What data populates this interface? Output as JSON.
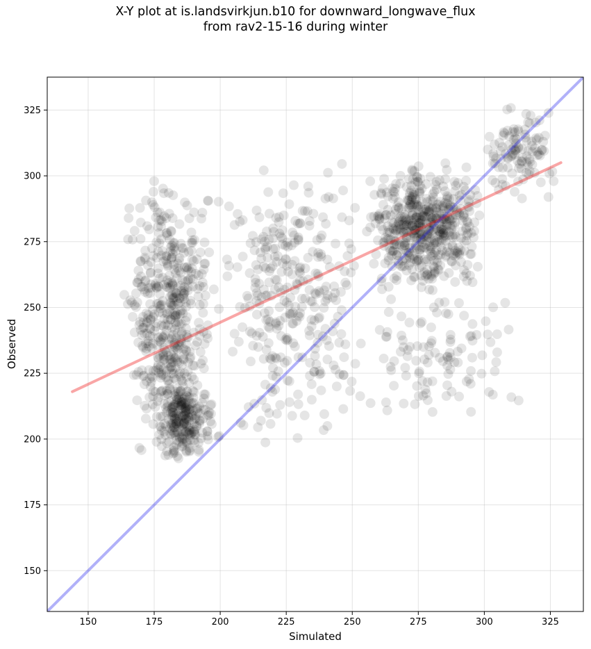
{
  "title_lines": [
    "X-Y plot at is.landsvirkjun.b10 for downward_longwave_flux",
    "from rav2-15-16 during winter"
  ],
  "chart_data": {
    "type": "scatter",
    "xlabel": "Simulated",
    "ylabel": "Observed",
    "xlim": [
      134.5,
      337.5
    ],
    "ylim": [
      134.5,
      337.5
    ],
    "xticks": [
      150,
      175,
      200,
      225,
      250,
      275,
      300,
      325
    ],
    "yticks": [
      150,
      175,
      200,
      225,
      250,
      275,
      300,
      325
    ],
    "grid": true,
    "marker_color": "#000000",
    "marker_alpha": 0.1,
    "points_generation": {
      "count": 1800,
      "note": "dense cloud; approximate distribution of simulated vs observed values",
      "clusters": [
        {
          "x": [
            163,
            200
          ],
          "y": [
            190,
            300
          ],
          "weight": 0.28
        },
        {
          "x": [
            175,
            198
          ],
          "y": [
            190,
            225
          ],
          "weight": 0.12
        },
        {
          "x": [
            200,
            255
          ],
          "y": [
            195,
            310
          ],
          "weight": 0.18
        },
        {
          "x": [
            255,
            300
          ],
          "y": [
            255,
            305
          ],
          "weight": 0.3
        },
        {
          "x": [
            255,
            315
          ],
          "y": [
            205,
            260
          ],
          "weight": 0.06
        },
        {
          "x": [
            300,
            328
          ],
          "y": [
            290,
            328
          ],
          "weight": 0.06
        }
      ]
    },
    "lines": [
      {
        "name": "regression",
        "color": "#ef2020",
        "alpha": 0.4,
        "x": [
          144,
          329
        ],
        "y": [
          218,
          305
        ]
      },
      {
        "name": "one-to-one",
        "color": "#1f1fef",
        "alpha": 0.35,
        "x": [
          134.5,
          337.5
        ],
        "y": [
          134.5,
          337.5
        ]
      }
    ]
  }
}
